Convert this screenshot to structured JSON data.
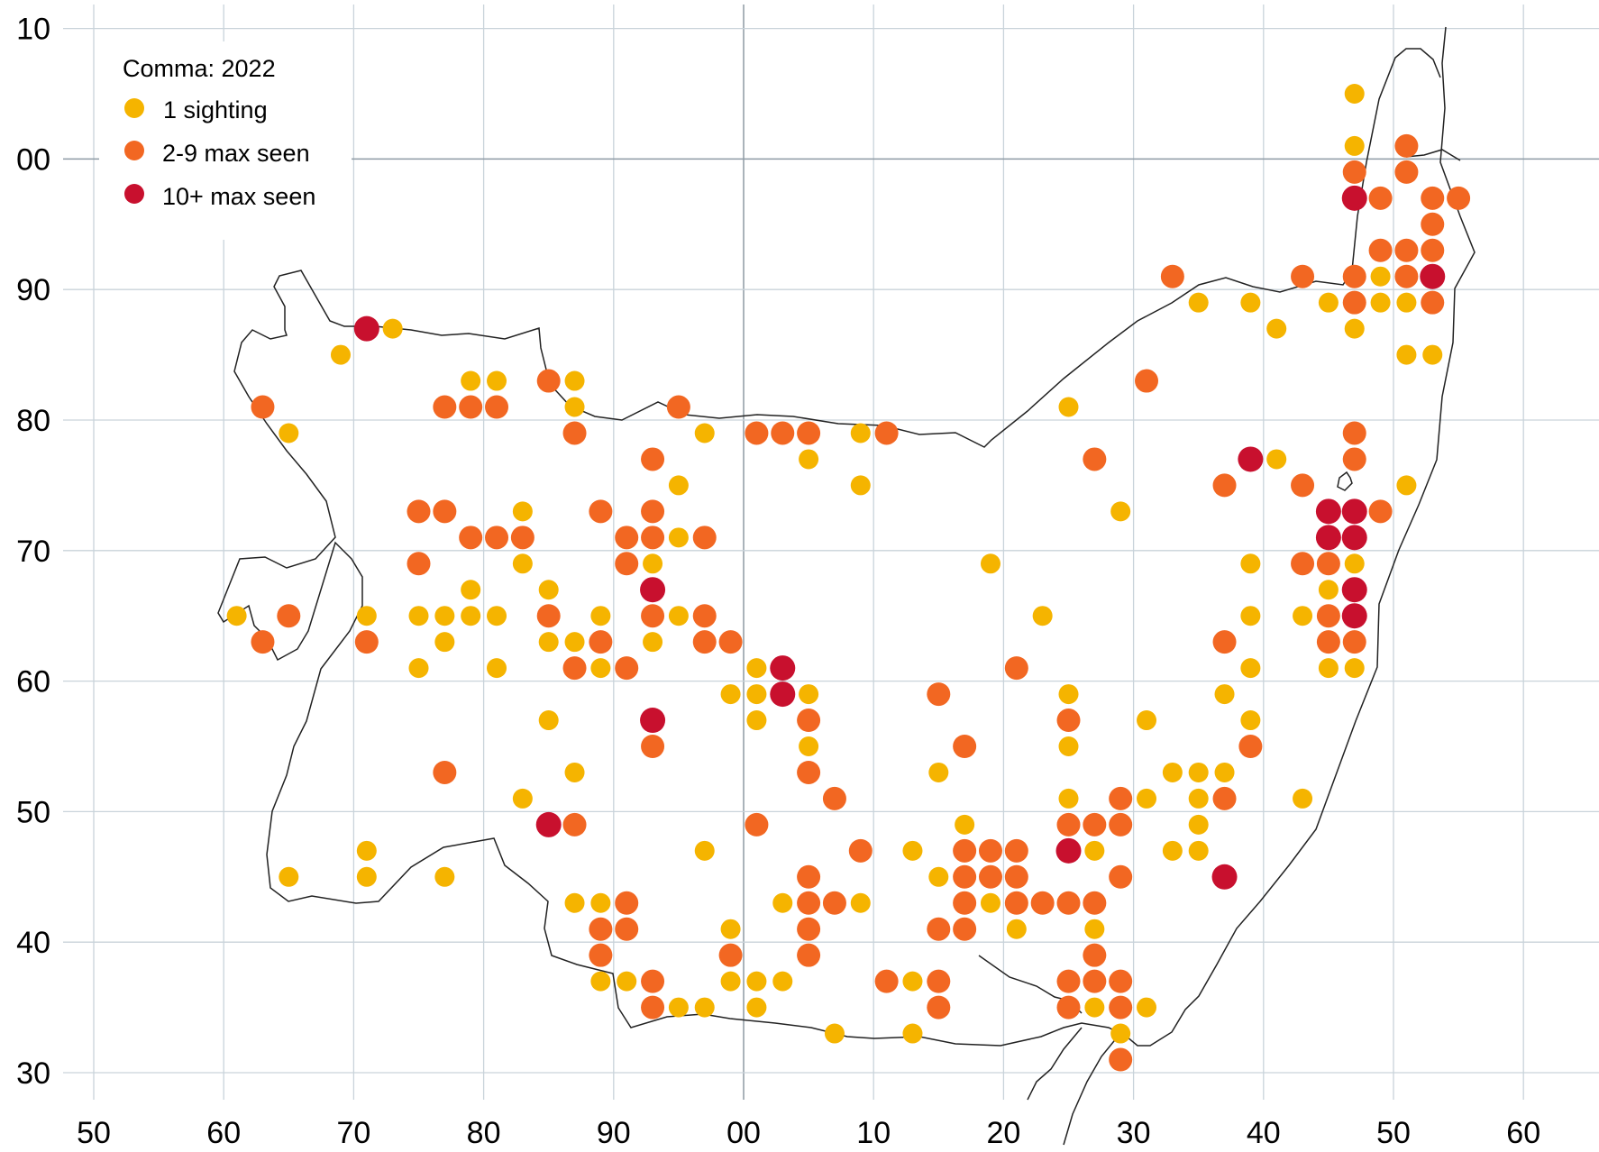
{
  "legend": {
    "title": "Comma:  2022",
    "items": [
      {
        "label": "1 sighting",
        "color": "#f5b400"
      },
      {
        "label": "2-9 max seen",
        "color": "#f26722"
      },
      {
        "label": "10+ max seen",
        "color": "#c8102e"
      }
    ]
  },
  "chart_data": {
    "type": "scatter",
    "x_tick_labels": [
      "50",
      "60",
      "70",
      "80",
      "90",
      "00",
      "10",
      "20",
      "30",
      "40",
      "50",
      "60"
    ],
    "y_tick_labels": [
      "10",
      "00",
      "90",
      "80",
      "70",
      "60",
      "50",
      "40",
      "30"
    ],
    "x_range": [
      50,
      160
    ],
    "y_range": [
      230,
      310
    ],
    "categories": [
      "1 sighting",
      "2-9 max seen",
      "10+ max seen"
    ],
    "points": [
      [
        147,
        305,
        0
      ],
      [
        147,
        301,
        0
      ],
      [
        151,
        301,
        1
      ],
      [
        147,
        299,
        1
      ],
      [
        151,
        299,
        1
      ],
      [
        147,
        297,
        2
      ],
      [
        149,
        297,
        1
      ],
      [
        153,
        297,
        1
      ],
      [
        155,
        297,
        1
      ],
      [
        153,
        295,
        1
      ],
      [
        149,
        293,
        1
      ],
      [
        151,
        293,
        1
      ],
      [
        153,
        293,
        1
      ],
      [
        133,
        291,
        1
      ],
      [
        143,
        291,
        1
      ],
      [
        147,
        291,
        1
      ],
      [
        149,
        291,
        0
      ],
      [
        151,
        291,
        1
      ],
      [
        153,
        291,
        2
      ],
      [
        135,
        289,
        0
      ],
      [
        139,
        289,
        0
      ],
      [
        145,
        289,
        0
      ],
      [
        147,
        289,
        1
      ],
      [
        149,
        289,
        0
      ],
      [
        151,
        289,
        0
      ],
      [
        153,
        289,
        1
      ],
      [
        71,
        287,
        2
      ],
      [
        73,
        287,
        0
      ],
      [
        141,
        287,
        0
      ],
      [
        147,
        287,
        0
      ],
      [
        69,
        285,
        0
      ],
      [
        151,
        285,
        0
      ],
      [
        153,
        285,
        0
      ],
      [
        79,
        283,
        0
      ],
      [
        81,
        283,
        0
      ],
      [
        85,
        283,
        1
      ],
      [
        87,
        283,
        0
      ],
      [
        131,
        283,
        1
      ],
      [
        63,
        281,
        1
      ],
      [
        77,
        281,
        1
      ],
      [
        79,
        281,
        1
      ],
      [
        81,
        281,
        1
      ],
      [
        87,
        281,
        0
      ],
      [
        95,
        281,
        1
      ],
      [
        125,
        281,
        0
      ],
      [
        65,
        279,
        0
      ],
      [
        87,
        279,
        1
      ],
      [
        97,
        279,
        0
      ],
      [
        101,
        279,
        1
      ],
      [
        103,
        279,
        1
      ],
      [
        105,
        279,
        1
      ],
      [
        109,
        279,
        0
      ],
      [
        111,
        279,
        1
      ],
      [
        147,
        279,
        1
      ],
      [
        93,
        277,
        1
      ],
      [
        105,
        277,
        0
      ],
      [
        127,
        277,
        1
      ],
      [
        139,
        277,
        2
      ],
      [
        141,
        277,
        0
      ],
      [
        147,
        277,
        1
      ],
      [
        95,
        275,
        0
      ],
      [
        109,
        275,
        0
      ],
      [
        137,
        275,
        1
      ],
      [
        143,
        275,
        1
      ],
      [
        151,
        275,
        0
      ],
      [
        75,
        273,
        1
      ],
      [
        77,
        273,
        1
      ],
      [
        83,
        273,
        0
      ],
      [
        89,
        273,
        1
      ],
      [
        93,
        273,
        1
      ],
      [
        129,
        273,
        0
      ],
      [
        145,
        273,
        2
      ],
      [
        147,
        273,
        2
      ],
      [
        149,
        273,
        1
      ],
      [
        79,
        271,
        1
      ],
      [
        81,
        271,
        1
      ],
      [
        83,
        271,
        1
      ],
      [
        91,
        271,
        1
      ],
      [
        93,
        271,
        1
      ],
      [
        95,
        271,
        0
      ],
      [
        97,
        271,
        1
      ],
      [
        145,
        271,
        2
      ],
      [
        147,
        271,
        2
      ],
      [
        75,
        269,
        1
      ],
      [
        83,
        269,
        0
      ],
      [
        91,
        269,
        1
      ],
      [
        93,
        269,
        0
      ],
      [
        119,
        269,
        0
      ],
      [
        139,
        269,
        0
      ],
      [
        143,
        269,
        1
      ],
      [
        145,
        269,
        1
      ],
      [
        147,
        269,
        0
      ],
      [
        79,
        267,
        0
      ],
      [
        85,
        267,
        0
      ],
      [
        93,
        267,
        2
      ],
      [
        145,
        267,
        0
      ],
      [
        147,
        267,
        2
      ],
      [
        61,
        265,
        0
      ],
      [
        65,
        265,
        1
      ],
      [
        71,
        265,
        0
      ],
      [
        75,
        265,
        0
      ],
      [
        77,
        265,
        0
      ],
      [
        79,
        265,
        0
      ],
      [
        81,
        265,
        0
      ],
      [
        85,
        265,
        1
      ],
      [
        89,
        265,
        0
      ],
      [
        93,
        265,
        1
      ],
      [
        95,
        265,
        0
      ],
      [
        97,
        265,
        1
      ],
      [
        123,
        265,
        0
      ],
      [
        139,
        265,
        0
      ],
      [
        143,
        265,
        0
      ],
      [
        145,
        265,
        1
      ],
      [
        147,
        265,
        2
      ],
      [
        63,
        263,
        1
      ],
      [
        71,
        263,
        1
      ],
      [
        77,
        263,
        0
      ],
      [
        85,
        263,
        0
      ],
      [
        87,
        263,
        0
      ],
      [
        89,
        263,
        1
      ],
      [
        93,
        263,
        0
      ],
      [
        97,
        263,
        1
      ],
      [
        99,
        263,
        1
      ],
      [
        137,
        263,
        1
      ],
      [
        145,
        263,
        1
      ],
      [
        147,
        263,
        1
      ],
      [
        75,
        261,
        0
      ],
      [
        81,
        261,
        0
      ],
      [
        87,
        261,
        1
      ],
      [
        89,
        261,
        0
      ],
      [
        91,
        261,
        1
      ],
      [
        101,
        261,
        0
      ],
      [
        103,
        261,
        2
      ],
      [
        121,
        261,
        1
      ],
      [
        139,
        261,
        0
      ],
      [
        145,
        261,
        0
      ],
      [
        147,
        261,
        0
      ],
      [
        99,
        259,
        0
      ],
      [
        101,
        259,
        0
      ],
      [
        103,
        259,
        2
      ],
      [
        105,
        259,
        0
      ],
      [
        115,
        259,
        1
      ],
      [
        125,
        259,
        0
      ],
      [
        137,
        259,
        0
      ],
      [
        85,
        257,
        0
      ],
      [
        93,
        257,
        2
      ],
      [
        101,
        257,
        0
      ],
      [
        105,
        257,
        1
      ],
      [
        125,
        257,
        1
      ],
      [
        131,
        257,
        0
      ],
      [
        139,
        257,
        0
      ],
      [
        93,
        255,
        1
      ],
      [
        105,
        255,
        0
      ],
      [
        117,
        255,
        1
      ],
      [
        125,
        255,
        0
      ],
      [
        139,
        255,
        1
      ],
      [
        77,
        253,
        1
      ],
      [
        87,
        253,
        0
      ],
      [
        105,
        253,
        1
      ],
      [
        115,
        253,
        0
      ],
      [
        133,
        253,
        0
      ],
      [
        135,
        253,
        0
      ],
      [
        137,
        253,
        0
      ],
      [
        83,
        251,
        0
      ],
      [
        107,
        251,
        1
      ],
      [
        125,
        251,
        0
      ],
      [
        129,
        251,
        1
      ],
      [
        131,
        251,
        0
      ],
      [
        135,
        251,
        0
      ],
      [
        137,
        251,
        1
      ],
      [
        143,
        251,
        0
      ],
      [
        85,
        249,
        2
      ],
      [
        87,
        249,
        1
      ],
      [
        101,
        249,
        1
      ],
      [
        117,
        249,
        0
      ],
      [
        125,
        249,
        1
      ],
      [
        127,
        249,
        1
      ],
      [
        129,
        249,
        1
      ],
      [
        135,
        249,
        0
      ],
      [
        71,
        247,
        0
      ],
      [
        97,
        247,
        0
      ],
      [
        109,
        247,
        1
      ],
      [
        113,
        247,
        0
      ],
      [
        117,
        247,
        1
      ],
      [
        119,
        247,
        1
      ],
      [
        121,
        247,
        1
      ],
      [
        125,
        247,
        2
      ],
      [
        127,
        247,
        0
      ],
      [
        133,
        247,
        0
      ],
      [
        135,
        247,
        0
      ],
      [
        65,
        245,
        0
      ],
      [
        71,
        245,
        0
      ],
      [
        77,
        245,
        0
      ],
      [
        105,
        245,
        1
      ],
      [
        115,
        245,
        0
      ],
      [
        117,
        245,
        1
      ],
      [
        119,
        245,
        1
      ],
      [
        121,
        245,
        1
      ],
      [
        129,
        245,
        1
      ],
      [
        137,
        245,
        2
      ],
      [
        87,
        243,
        0
      ],
      [
        89,
        243,
        0
      ],
      [
        91,
        243,
        1
      ],
      [
        103,
        243,
        0
      ],
      [
        105,
        243,
        1
      ],
      [
        107,
        243,
        1
      ],
      [
        109,
        243,
        0
      ],
      [
        117,
        243,
        1
      ],
      [
        119,
        243,
        0
      ],
      [
        121,
        243,
        1
      ],
      [
        123,
        243,
        1
      ],
      [
        125,
        243,
        1
      ],
      [
        127,
        243,
        1
      ],
      [
        89,
        241,
        1
      ],
      [
        91,
        241,
        1
      ],
      [
        99,
        241,
        0
      ],
      [
        105,
        241,
        1
      ],
      [
        115,
        241,
        1
      ],
      [
        117,
        241,
        1
      ],
      [
        121,
        241,
        0
      ],
      [
        127,
        241,
        0
      ],
      [
        89,
        239,
        1
      ],
      [
        99,
        239,
        1
      ],
      [
        105,
        239,
        1
      ],
      [
        127,
        239,
        1
      ],
      [
        89,
        237,
        0
      ],
      [
        91,
        237,
        0
      ],
      [
        93,
        237,
        1
      ],
      [
        99,
        237,
        0
      ],
      [
        101,
        237,
        0
      ],
      [
        103,
        237,
        0
      ],
      [
        111,
        237,
        1
      ],
      [
        113,
        237,
        0
      ],
      [
        115,
        237,
        1
      ],
      [
        125,
        237,
        1
      ],
      [
        127,
        237,
        1
      ],
      [
        129,
        237,
        1
      ],
      [
        93,
        235,
        1
      ],
      [
        95,
        235,
        0
      ],
      [
        97,
        235,
        0
      ],
      [
        101,
        235,
        0
      ],
      [
        115,
        235,
        1
      ],
      [
        125,
        235,
        1
      ],
      [
        127,
        235,
        0
      ],
      [
        129,
        235,
        1
      ],
      [
        131,
        235,
        0
      ],
      [
        107,
        233,
        0
      ],
      [
        113,
        233,
        0
      ],
      [
        129,
        233,
        0
      ],
      [
        129,
        231,
        1
      ]
    ]
  }
}
